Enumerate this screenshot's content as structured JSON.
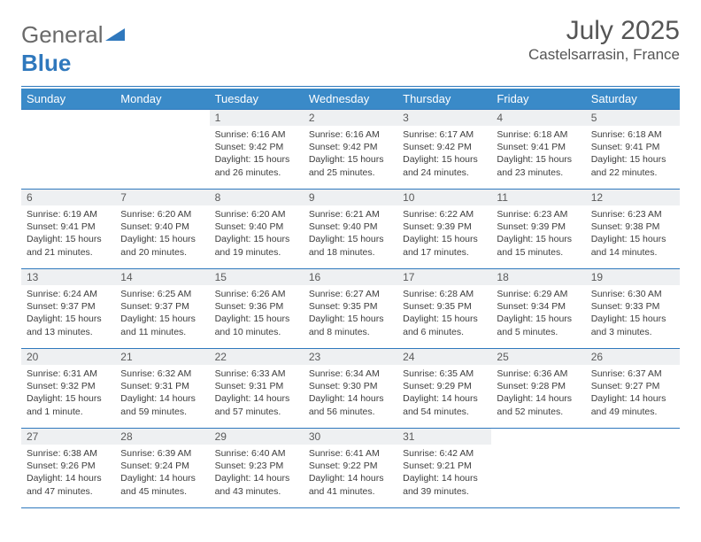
{
  "logo": {
    "text1": "General",
    "text2": "Blue",
    "triangle_color": "#2f78bd",
    "text1_color": "#6a6a6a"
  },
  "title": "July 2025",
  "location": "Castelsarrasin, France",
  "colors": {
    "header_bg": "#3a8ac8",
    "daynum_bg": "#eef0f2",
    "border": "#2f78bd",
    "text": "#3d3d3d"
  },
  "days_of_week": [
    "Sunday",
    "Monday",
    "Tuesday",
    "Wednesday",
    "Thursday",
    "Friday",
    "Saturday"
  ],
  "weeks": [
    [
      null,
      null,
      {
        "n": "1",
        "sr": "6:16 AM",
        "ss": "9:42 PM",
        "dl": "15 hours and 26 minutes."
      },
      {
        "n": "2",
        "sr": "6:16 AM",
        "ss": "9:42 PM",
        "dl": "15 hours and 25 minutes."
      },
      {
        "n": "3",
        "sr": "6:17 AM",
        "ss": "9:42 PM",
        "dl": "15 hours and 24 minutes."
      },
      {
        "n": "4",
        "sr": "6:18 AM",
        "ss": "9:41 PM",
        "dl": "15 hours and 23 minutes."
      },
      {
        "n": "5",
        "sr": "6:18 AM",
        "ss": "9:41 PM",
        "dl": "15 hours and 22 minutes."
      }
    ],
    [
      {
        "n": "6",
        "sr": "6:19 AM",
        "ss": "9:41 PM",
        "dl": "15 hours and 21 minutes."
      },
      {
        "n": "7",
        "sr": "6:20 AM",
        "ss": "9:40 PM",
        "dl": "15 hours and 20 minutes."
      },
      {
        "n": "8",
        "sr": "6:20 AM",
        "ss": "9:40 PM",
        "dl": "15 hours and 19 minutes."
      },
      {
        "n": "9",
        "sr": "6:21 AM",
        "ss": "9:40 PM",
        "dl": "15 hours and 18 minutes."
      },
      {
        "n": "10",
        "sr": "6:22 AM",
        "ss": "9:39 PM",
        "dl": "15 hours and 17 minutes."
      },
      {
        "n": "11",
        "sr": "6:23 AM",
        "ss": "9:39 PM",
        "dl": "15 hours and 15 minutes."
      },
      {
        "n": "12",
        "sr": "6:23 AM",
        "ss": "9:38 PM",
        "dl": "15 hours and 14 minutes."
      }
    ],
    [
      {
        "n": "13",
        "sr": "6:24 AM",
        "ss": "9:37 PM",
        "dl": "15 hours and 13 minutes."
      },
      {
        "n": "14",
        "sr": "6:25 AM",
        "ss": "9:37 PM",
        "dl": "15 hours and 11 minutes."
      },
      {
        "n": "15",
        "sr": "6:26 AM",
        "ss": "9:36 PM",
        "dl": "15 hours and 10 minutes."
      },
      {
        "n": "16",
        "sr": "6:27 AM",
        "ss": "9:35 PM",
        "dl": "15 hours and 8 minutes."
      },
      {
        "n": "17",
        "sr": "6:28 AM",
        "ss": "9:35 PM",
        "dl": "15 hours and 6 minutes."
      },
      {
        "n": "18",
        "sr": "6:29 AM",
        "ss": "9:34 PM",
        "dl": "15 hours and 5 minutes."
      },
      {
        "n": "19",
        "sr": "6:30 AM",
        "ss": "9:33 PM",
        "dl": "15 hours and 3 minutes."
      }
    ],
    [
      {
        "n": "20",
        "sr": "6:31 AM",
        "ss": "9:32 PM",
        "dl": "15 hours and 1 minute."
      },
      {
        "n": "21",
        "sr": "6:32 AM",
        "ss": "9:31 PM",
        "dl": "14 hours and 59 minutes."
      },
      {
        "n": "22",
        "sr": "6:33 AM",
        "ss": "9:31 PM",
        "dl": "14 hours and 57 minutes."
      },
      {
        "n": "23",
        "sr": "6:34 AM",
        "ss": "9:30 PM",
        "dl": "14 hours and 56 minutes."
      },
      {
        "n": "24",
        "sr": "6:35 AM",
        "ss": "9:29 PM",
        "dl": "14 hours and 54 minutes."
      },
      {
        "n": "25",
        "sr": "6:36 AM",
        "ss": "9:28 PM",
        "dl": "14 hours and 52 minutes."
      },
      {
        "n": "26",
        "sr": "6:37 AM",
        "ss": "9:27 PM",
        "dl": "14 hours and 49 minutes."
      }
    ],
    [
      {
        "n": "27",
        "sr": "6:38 AM",
        "ss": "9:26 PM",
        "dl": "14 hours and 47 minutes."
      },
      {
        "n": "28",
        "sr": "6:39 AM",
        "ss": "9:24 PM",
        "dl": "14 hours and 45 minutes."
      },
      {
        "n": "29",
        "sr": "6:40 AM",
        "ss": "9:23 PM",
        "dl": "14 hours and 43 minutes."
      },
      {
        "n": "30",
        "sr": "6:41 AM",
        "ss": "9:22 PM",
        "dl": "14 hours and 41 minutes."
      },
      {
        "n": "31",
        "sr": "6:42 AM",
        "ss": "9:21 PM",
        "dl": "14 hours and 39 minutes."
      },
      null,
      null
    ]
  ],
  "labels": {
    "sunrise": "Sunrise: ",
    "sunset": "Sunset: ",
    "daylight": "Daylight: "
  }
}
